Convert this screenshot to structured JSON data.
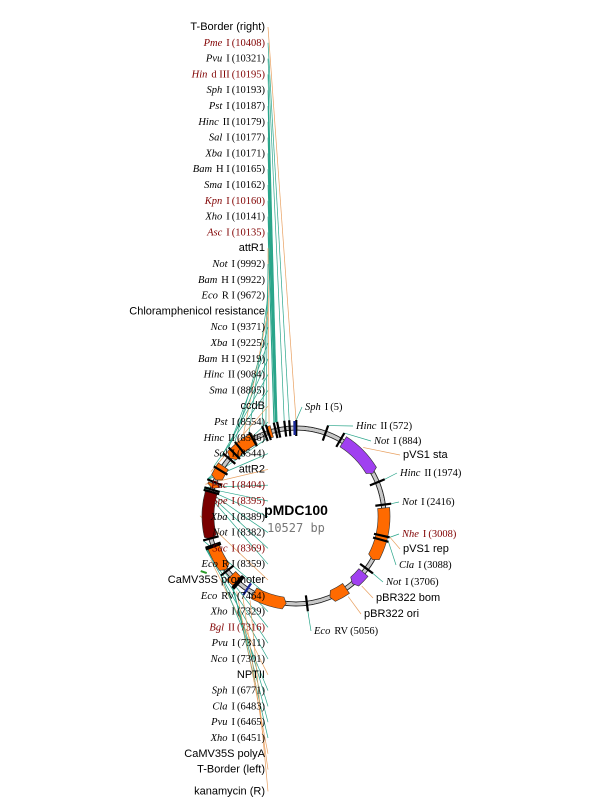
{
  "plasmid": {
    "name": "pMDC100",
    "size_label": "10527 bp",
    "length_bp": 10527
  },
  "colors": {
    "feature_orange": "#ff6a00",
    "feature_purple": "#a040f0",
    "feature_darkred": "#7a0000",
    "line_green": "#2aa58a",
    "line_orange": "#e8a060",
    "unique_site": "#800000",
    "normal_site": "#000000"
  },
  "left_labels": [
    {
      "kind": "feature",
      "name": "T-Border (right)",
      "bp": 10527
    },
    {
      "kind": "site",
      "enzyme": "Pme",
      "suffix": "I",
      "pos": "(10408)",
      "bp": 10408,
      "unique": true
    },
    {
      "kind": "site",
      "enzyme": "Pvu",
      "suffix": "I",
      "pos": "(10321)",
      "bp": 10321,
      "unique": false
    },
    {
      "kind": "site",
      "enzyme": "Hin",
      "suffix": "d III",
      "pos": "(10195)",
      "bp": 10195,
      "unique": true
    },
    {
      "kind": "site",
      "enzyme": "Sph",
      "suffix": "I",
      "pos": "(10193)",
      "bp": 10193,
      "unique": false
    },
    {
      "kind": "site",
      "enzyme": "Pst",
      "suffix": "I",
      "pos": "(10187)",
      "bp": 10187,
      "unique": false
    },
    {
      "kind": "site",
      "enzyme": "Hinc",
      "suffix": "II",
      "pos": "(10179)",
      "bp": 10179,
      "unique": false
    },
    {
      "kind": "site",
      "enzyme": "Sal",
      "suffix": "I",
      "pos": "(10177)",
      "bp": 10177,
      "unique": false
    },
    {
      "kind": "site",
      "enzyme": "Xba",
      "suffix": "I",
      "pos": "(10171)",
      "bp": 10171,
      "unique": false
    },
    {
      "kind": "site",
      "enzyme": "Bam",
      "suffix": "H I",
      "pos": "(10165)",
      "bp": 10165,
      "unique": false
    },
    {
      "kind": "site",
      "enzyme": "Sma",
      "suffix": "I",
      "pos": "(10162)",
      "bp": 10162,
      "unique": false
    },
    {
      "kind": "site",
      "enzyme": "Kpn",
      "suffix": "I",
      "pos": "(10160)",
      "bp": 10160,
      "unique": true
    },
    {
      "kind": "site",
      "enzyme": "Xho",
      "suffix": "I",
      "pos": "(10141)",
      "bp": 10141,
      "unique": false
    },
    {
      "kind": "site",
      "enzyme": "Asc",
      "suffix": "I",
      "pos": "(10135)",
      "bp": 10135,
      "unique": true
    },
    {
      "kind": "feature",
      "name": "attR1",
      "bp": 10050
    },
    {
      "kind": "site",
      "enzyme": "Not",
      "suffix": "I",
      "pos": "(9992)",
      "bp": 9992,
      "unique": false
    },
    {
      "kind": "site",
      "enzyme": "Bam",
      "suffix": "H I",
      "pos": "(9922)",
      "bp": 9922,
      "unique": false
    },
    {
      "kind": "site",
      "enzyme": "Eco",
      "suffix": "R I",
      "pos": "(9672)",
      "bp": 9672,
      "unique": false
    },
    {
      "kind": "feature",
      "name": "Chloramphenicol resistance",
      "bp": 9550
    },
    {
      "kind": "site",
      "enzyme": "Nco",
      "suffix": "I",
      "pos": "(9371)",
      "bp": 9371,
      "unique": false
    },
    {
      "kind": "site",
      "enzyme": "Xba",
      "suffix": "I",
      "pos": "(9225)",
      "bp": 9225,
      "unique": false
    },
    {
      "kind": "site",
      "enzyme": "Bam",
      "suffix": "H I",
      "pos": "(9219)",
      "bp": 9219,
      "unique": false
    },
    {
      "kind": "site",
      "enzyme": "Hinc",
      "suffix": "II",
      "pos": "(9084)",
      "bp": 9084,
      "unique": false
    },
    {
      "kind": "site",
      "enzyme": "Sma",
      "suffix": "I",
      "pos": "(8805)",
      "bp": 8805,
      "unique": false
    },
    {
      "kind": "feature",
      "name": "ccdB",
      "bp": 8700
    },
    {
      "kind": "site",
      "enzyme": "Pst",
      "suffix": "I",
      "pos": "(8554)",
      "bp": 8554,
      "unique": false
    },
    {
      "kind": "site",
      "enzyme": "Hinc",
      "suffix": "II",
      "pos": "(8546)",
      "bp": 8546,
      "unique": false
    },
    {
      "kind": "site",
      "enzyme": "Sal",
      "suffix": "I",
      "pos": "(8544)",
      "bp": 8544,
      "unique": false
    },
    {
      "kind": "feature",
      "name": "attR2",
      "bp": 8460
    },
    {
      "kind": "site",
      "enzyme": "Pac",
      "suffix": "I",
      "pos": "(8404)",
      "bp": 8404,
      "unique": true
    },
    {
      "kind": "site",
      "enzyme": "Spe",
      "suffix": "I",
      "pos": "(8395)",
      "bp": 8395,
      "unique": true
    },
    {
      "kind": "site",
      "enzyme": "Xba",
      "suffix": "I",
      "pos": "(8389)",
      "bp": 8389,
      "unique": false
    },
    {
      "kind": "site",
      "enzyme": "Not",
      "suffix": "I",
      "pos": "(8382)",
      "bp": 8382,
      "unique": false
    },
    {
      "kind": "site",
      "enzyme": "Sac",
      "suffix": "I",
      "pos": "(8369)",
      "bp": 8369,
      "unique": true
    },
    {
      "kind": "site",
      "enzyme": "Eco",
      "suffix": "R I",
      "pos": "(8359)",
      "bp": 8359,
      "unique": false
    },
    {
      "kind": "feature",
      "name": "CaMV35S promoter",
      "bp": 7900
    },
    {
      "kind": "site",
      "enzyme": "Eco",
      "suffix": "RV",
      "pos": "(7464)",
      "bp": 7464,
      "unique": false
    },
    {
      "kind": "site",
      "enzyme": "Xho",
      "suffix": "I",
      "pos": "(7329)",
      "bp": 7329,
      "unique": false
    },
    {
      "kind": "site",
      "enzyme": "Bgl",
      "suffix": "II",
      "pos": "(7316)",
      "bp": 7316,
      "unique": true
    },
    {
      "kind": "site",
      "enzyme": "Pvu",
      "suffix": "I",
      "pos": "(7311)",
      "bp": 7311,
      "unique": false
    },
    {
      "kind": "site",
      "enzyme": "Nco",
      "suffix": "I",
      "pos": "(7301)",
      "bp": 7301,
      "unique": false
    },
    {
      "kind": "feature",
      "name": "NPTII",
      "bp": 7100
    },
    {
      "kind": "site",
      "enzyme": "Sph",
      "suffix": "I",
      "pos": "(6771)",
      "bp": 6771,
      "unique": false
    },
    {
      "kind": "site",
      "enzyme": "Cla",
      "suffix": "I",
      "pos": "(6483)",
      "bp": 6483,
      "unique": false
    },
    {
      "kind": "site",
      "enzyme": "Pvu",
      "suffix": "I",
      "pos": "(6465)",
      "bp": 6465,
      "unique": false
    },
    {
      "kind": "site",
      "enzyme": "Xho",
      "suffix": "I",
      "pos": "(6451)",
      "bp": 6451,
      "unique": false
    },
    {
      "kind": "feature",
      "name": "CaMV35S polyA",
      "bp": 6380
    },
    {
      "kind": "feature",
      "name": "T-Border (left)",
      "bp": 6250
    },
    {
      "kind": "feature",
      "name": "kanamycin (R)",
      "bp": 6100
    }
  ],
  "right_labels": [
    {
      "kind": "site",
      "enzyme": "Sph",
      "suffix": "I",
      "pos": "(5)",
      "bp": 5,
      "unique": false
    },
    {
      "kind": "site",
      "enzyme": "Hinc",
      "suffix": "II",
      "pos": "(572)",
      "bp": 572,
      "unique": false
    },
    {
      "kind": "site",
      "enzyme": "Not",
      "suffix": "I",
      "pos": "(884)",
      "bp": 884,
      "unique": false
    },
    {
      "kind": "feature",
      "name": "pVS1 sta",
      "bp": 1300
    },
    {
      "kind": "site",
      "enzyme": "Hinc",
      "suffix": "II",
      "pos": "(1974)",
      "bp": 1974,
      "unique": false
    },
    {
      "kind": "site",
      "enzyme": "Not",
      "suffix": "I",
      "pos": "(2416)",
      "bp": 2416,
      "unique": false
    },
    {
      "kind": "site",
      "enzyme": "Nhe",
      "suffix": "I",
      "pos": "(3008)",
      "bp": 3008,
      "unique": true
    },
    {
      "kind": "feature",
      "name": "pVS1 rep",
      "bp": 3000
    },
    {
      "kind": "site",
      "enzyme": "Cla",
      "suffix": "I",
      "pos": "(3088)",
      "bp": 3088,
      "unique": false
    },
    {
      "kind": "site",
      "enzyme": "Not",
      "suffix": "I",
      "pos": "(3706)",
      "bp": 3706,
      "unique": false
    },
    {
      "kind": "feature",
      "name": "pBR322 bom",
      "bp": 4000
    },
    {
      "kind": "feature",
      "name": "pBR322 ori",
      "bp": 4300
    },
    {
      "kind": "site",
      "enzyme": "Eco",
      "suffix": "RV",
      "pos": "(5056)",
      "bp": 5056,
      "unique": false
    }
  ],
  "features": [
    {
      "name": "pVS1 sta",
      "start": 950,
      "end": 1780,
      "color": "purple",
      "dir": 1
    },
    {
      "name": "pVS1 rep",
      "start": 2480,
      "end": 3500,
      "color": "orange",
      "dir": 1
    },
    {
      "name": "pBR322 bom",
      "start": 3800,
      "end": 4100,
      "color": "purple",
      "dir": 1
    },
    {
      "name": "pBR322 ori",
      "start": 4250,
      "end": 4600,
      "color": "orange",
      "dir": 1
    },
    {
      "name": "kanamycin (R)",
      "start": 5450,
      "end": 6100,
      "color": "orange",
      "dir": -1
    },
    {
      "name": "CaMV35S polyA",
      "start": 6450,
      "end": 6650,
      "color": "orange",
      "dir": -1
    },
    {
      "name": "NPTII",
      "start": 6800,
      "end": 7300,
      "color": "orange",
      "dir": -1
    },
    {
      "name": "CaMV35S promoter",
      "start": 7450,
      "end": 8350,
      "color": "darkred",
      "dir": -1
    },
    {
      "name": "attR2",
      "start": 8430,
      "end": 8520,
      "color": "orange",
      "dir": -1
    },
    {
      "name": "ccdB",
      "start": 8600,
      "end": 8900,
      "color": "orange",
      "dir": -1
    },
    {
      "name": "Chloramphenicol resistance",
      "start": 9100,
      "end": 9700,
      "color": "orange",
      "dir": -1
    },
    {
      "name": "attR1",
      "start": 9960,
      "end": 10060,
      "color": "orange",
      "dir": -1
    }
  ],
  "border_marks": [
    {
      "name": "T-Border (right)",
      "bp": 10500
    },
    {
      "name": "T-Border (left)",
      "bp": 6250
    }
  ],
  "ticks": [
    5,
    572,
    884,
    1974,
    2416,
    3008,
    3088,
    3706,
    5056,
    6451,
    6465,
    6483,
    6771,
    7301,
    7329,
    7464,
    8359,
    8404,
    8554,
    8805,
    9084,
    9225,
    9371,
    9672,
    9922,
    9992,
    10135,
    10195,
    10321,
    10408
  ]
}
